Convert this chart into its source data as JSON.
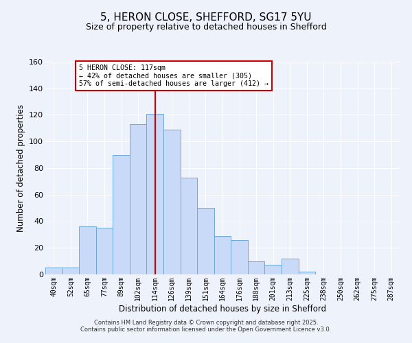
{
  "title": "5, HERON CLOSE, SHEFFORD, SG17 5YU",
  "subtitle": "Size of property relative to detached houses in Shefford",
  "xlabel": "Distribution of detached houses by size in Shefford",
  "ylabel": "Number of detached properties",
  "bin_labels": [
    "40sqm",
    "52sqm",
    "65sqm",
    "77sqm",
    "89sqm",
    "102sqm",
    "114sqm",
    "126sqm",
    "139sqm",
    "151sqm",
    "164sqm",
    "176sqm",
    "188sqm",
    "201sqm",
    "213sqm",
    "225sqm",
    "238sqm",
    "250sqm",
    "262sqm",
    "275sqm",
    "287sqm"
  ],
  "bar_values": [
    5,
    5,
    36,
    35,
    90,
    113,
    121,
    109,
    73,
    50,
    29,
    26,
    10,
    7,
    12,
    2,
    0,
    0,
    0,
    0,
    0
  ],
  "bar_color": "#c9daf8",
  "bar_edge_color": "#6fa8dc",
  "ylim": [
    0,
    160
  ],
  "yticks": [
    0,
    20,
    40,
    60,
    80,
    100,
    120,
    140,
    160
  ],
  "vline_x_idx": 6,
  "vline_color": "#cc0000",
  "annotation_title": "5 HERON CLOSE: 117sqm",
  "annotation_line1": "← 42% of detached houses are smaller (305)",
  "annotation_line2": "57% of semi-detached houses are larger (412) →",
  "annotation_box_color": "#ffffff",
  "annotation_box_edge": "#cc0000",
  "footnote1": "Contains HM Land Registry data © Crown copyright and database right 2025.",
  "footnote2": "Contains public sector information licensed under the Open Government Licence v3.0.",
  "background_color": "#eef2fb",
  "plot_background": "#eef2fb",
  "grid_color": "#ffffff",
  "title_fontsize": 11,
  "subtitle_fontsize": 9,
  "xlabel_fontsize": 8.5,
  "ylabel_fontsize": 8.5
}
